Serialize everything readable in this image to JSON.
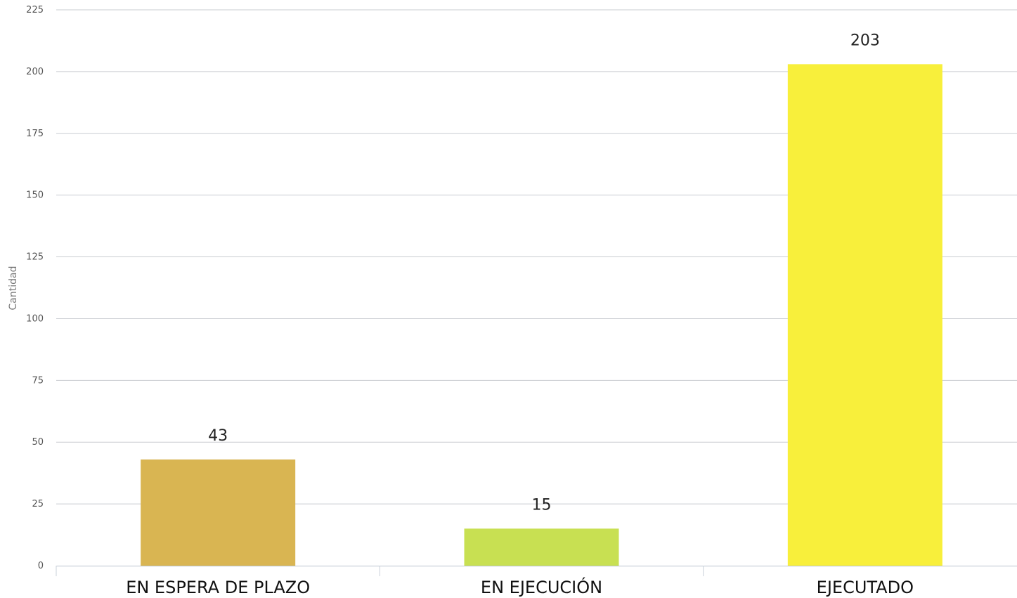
{
  "chart_data": {
    "type": "bar",
    "title": "",
    "xlabel": "",
    "ylabel": "Cantidad",
    "ylim": [
      0,
      225
    ],
    "yticks": [
      0,
      25,
      50,
      75,
      100,
      125,
      150,
      175,
      200,
      225
    ],
    "categories": [
      "EN ESPERA DE PLAZO",
      "EN EJECUCIÓN",
      "EJECUTADO"
    ],
    "values": [
      43,
      15,
      203
    ],
    "colors": [
      "#d9b552",
      "#c8e052",
      "#f8ef3b"
    ],
    "grid": true,
    "legend": "none",
    "data_labels": true
  }
}
